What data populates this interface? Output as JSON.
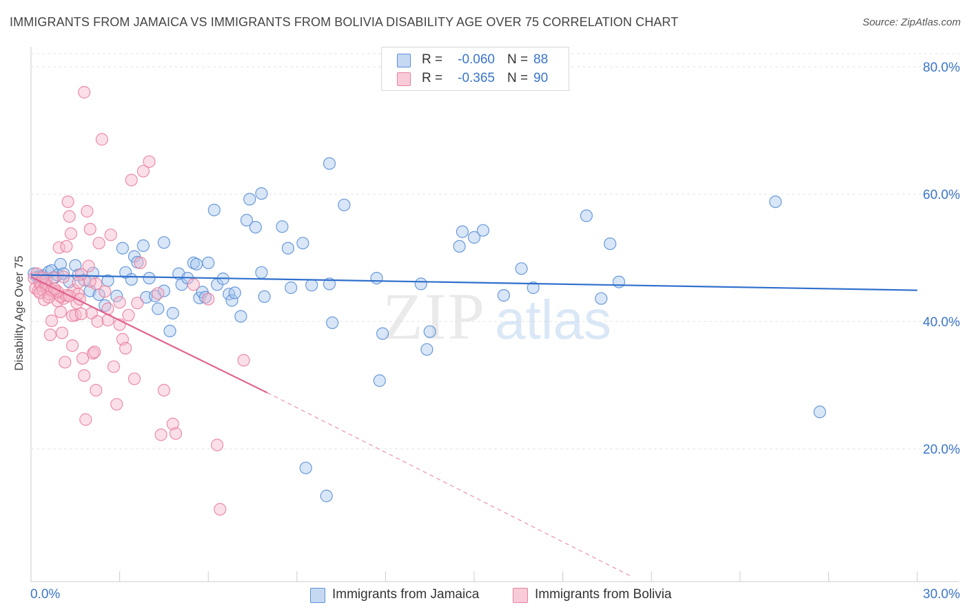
{
  "title": "IMMIGRANTS FROM JAMAICA VS IMMIGRANTS FROM BOLIVIA DISABILITY AGE OVER 75 CORRELATION CHART",
  "source": "Source: ZipAtlas.com",
  "watermark": {
    "zip": "ZIP",
    "atlas": "atlas"
  },
  "legend": {
    "r_label": "R =",
    "n_label": "N =",
    "series": [
      {
        "r": "-0.060",
        "n": "88"
      },
      {
        "r": "-0.365",
        "n": "90"
      }
    ]
  },
  "colors": {
    "jamaica_fill": "#a9c7ee",
    "jamaica_stroke": "#5b8fd6",
    "jamaica_line": "#2f6fcc",
    "bolivia_fill": "#f6b7cb",
    "bolivia_stroke": "#e8819f",
    "bolivia_line": "#e0638e",
    "axis_text": "#3a74c9"
  },
  "chart_data": {
    "type": "scatter",
    "title": "IMMIGRANTS FROM JAMAICA VS IMMIGRANTS FROM BOLIVIA DISABILITY AGE OVER 75 CORRELATION CHART",
    "xlabel": "",
    "ylabel": "Disability Age Over 75",
    "xlim": [
      0,
      30
    ],
    "ylim": [
      0,
      80
    ],
    "x_tick_labels": [
      "0.0%",
      "30.0%"
    ],
    "y_ticks": [
      20,
      40,
      60,
      80
    ],
    "y_tick_labels": [
      "20.0%",
      "40.0%",
      "60.0%",
      "80.0%"
    ],
    "grid": true,
    "legend_position": "top-center",
    "series": [
      {
        "name": "Immigrants from Jamaica",
        "r": -0.06,
        "n": 88,
        "trend": {
          "x": [
            0,
            30
          ],
          "y": [
            47.3,
            44.9
          ],
          "style": "solid"
        },
        "points": [
          [
            0.1,
            47.5
          ],
          [
            0.2,
            47.0
          ],
          [
            0.3,
            46.8
          ],
          [
            0.4,
            47.2
          ],
          [
            0.5,
            46.5
          ],
          [
            0.6,
            47.8
          ],
          [
            0.7,
            48.0
          ],
          [
            0.8,
            46.9
          ],
          [
            0.9,
            47.3
          ],
          [
            1.0,
            49.0
          ],
          [
            1.1,
            47.5
          ],
          [
            1.3,
            46.2
          ],
          [
            1.5,
            48.8
          ],
          [
            1.6,
            47.3
          ],
          [
            1.8,
            46.5
          ],
          [
            2.0,
            44.8
          ],
          [
            2.1,
            47.6
          ],
          [
            2.3,
            44.2
          ],
          [
            2.5,
            42.5
          ],
          [
            2.6,
            46.4
          ],
          [
            2.9,
            44.0
          ],
          [
            3.1,
            51.5
          ],
          [
            3.2,
            47.7
          ],
          [
            3.4,
            46.6
          ],
          [
            3.5,
            50.2
          ],
          [
            3.6,
            49.3
          ],
          [
            3.8,
            51.9
          ],
          [
            3.9,
            43.8
          ],
          [
            4.0,
            46.8
          ],
          [
            4.2,
            44.0
          ],
          [
            4.3,
            42.0
          ],
          [
            4.5,
            44.8
          ],
          [
            4.5,
            52.4
          ],
          [
            4.7,
            38.5
          ],
          [
            4.8,
            41.3
          ],
          [
            5.0,
            47.5
          ],
          [
            5.1,
            45.8
          ],
          [
            5.3,
            46.8
          ],
          [
            5.5,
            49.2
          ],
          [
            5.6,
            49.0
          ],
          [
            5.7,
            43.7
          ],
          [
            5.8,
            44.6
          ],
          [
            5.9,
            43.8
          ],
          [
            6.0,
            49.2
          ],
          [
            6.2,
            57.5
          ],
          [
            6.3,
            45.8
          ],
          [
            6.5,
            46.7
          ],
          [
            6.7,
            44.3
          ],
          [
            6.8,
            43.3
          ],
          [
            6.9,
            44.5
          ],
          [
            7.1,
            40.8
          ],
          [
            7.3,
            55.9
          ],
          [
            7.4,
            59.2
          ],
          [
            7.6,
            54.8
          ],
          [
            7.8,
            47.7
          ],
          [
            7.8,
            60.1
          ],
          [
            7.9,
            43.9
          ],
          [
            8.5,
            54.9
          ],
          [
            8.7,
            51.5
          ],
          [
            8.8,
            45.3
          ],
          [
            9.2,
            52.3
          ],
          [
            9.5,
            45.7
          ],
          [
            9.3,
            17.0
          ],
          [
            10.1,
            64.8
          ],
          [
            10.0,
            12.6
          ],
          [
            10.1,
            45.9
          ],
          [
            10.2,
            39.8
          ],
          [
            10.6,
            58.3
          ],
          [
            11.7,
            46.8
          ],
          [
            11.9,
            38.1
          ],
          [
            11.8,
            30.7
          ],
          [
            13.2,
            45.9
          ],
          [
            13.4,
            35.6
          ],
          [
            13.5,
            38.4
          ],
          [
            14.5,
            51.8
          ],
          [
            14.6,
            54.1
          ],
          [
            15.0,
            53.2
          ],
          [
            15.3,
            54.3
          ],
          [
            16.0,
            44.1
          ],
          [
            16.6,
            48.3
          ],
          [
            17.0,
            45.3
          ],
          [
            18.8,
            56.6
          ],
          [
            19.3,
            43.6
          ],
          [
            19.6,
            52.2
          ],
          [
            19.9,
            46.2
          ],
          [
            25.2,
            58.8
          ],
          [
            26.7,
            25.8
          ],
          [
            0.3,
            47.0
          ]
        ]
      },
      {
        "name": "Immigrants from Bolivia",
        "r": -0.365,
        "n": 90,
        "trend": {
          "x": [
            0,
            8.0
          ],
          "y": [
            47.0,
            28.8
          ],
          "style": "solid",
          "dashed_extension": {
            "x": [
              8.0,
              20.3
            ],
            "y": [
              28.8,
              0
            ]
          }
        },
        "points": [
          [
            0.1,
            46.8
          ],
          [
            0.15,
            45.2
          ],
          [
            0.2,
            47.5
          ],
          [
            0.25,
            44.8
          ],
          [
            0.3,
            46.0
          ],
          [
            0.35,
            45.6
          ],
          [
            0.4,
            44.9
          ],
          [
            0.45,
            43.4
          ],
          [
            0.5,
            46.4
          ],
          [
            0.55,
            45.1
          ],
          [
            0.6,
            44.3
          ],
          [
            0.65,
            37.9
          ],
          [
            0.7,
            40.1
          ],
          [
            0.75,
            46.9
          ],
          [
            0.8,
            44.8
          ],
          [
            0.85,
            44.4
          ],
          [
            0.9,
            43.2
          ],
          [
            0.95,
            51.6
          ],
          [
            1.0,
            41.5
          ],
          [
            1.05,
            38.2
          ],
          [
            1.1,
            43.6
          ],
          [
            1.15,
            33.6
          ],
          [
            1.2,
            51.8
          ],
          [
            1.25,
            58.8
          ],
          [
            1.3,
            56.5
          ],
          [
            1.35,
            53.8
          ],
          [
            1.4,
            36.2
          ],
          [
            1.45,
            44.9
          ],
          [
            1.5,
            41.0
          ],
          [
            1.55,
            42.9
          ],
          [
            1.6,
            44.3
          ],
          [
            1.65,
            43.5
          ],
          [
            1.7,
            47.4
          ],
          [
            1.75,
            34.2
          ],
          [
            1.8,
            31.5
          ],
          [
            1.85,
            24.6
          ],
          [
            1.9,
            57.3
          ],
          [
            1.95,
            48.7
          ],
          [
            2.0,
            54.5
          ],
          [
            2.05,
            41.3
          ],
          [
            2.1,
            35.0
          ],
          [
            2.15,
            35.2
          ],
          [
            2.2,
            29.2
          ],
          [
            2.25,
            40.0
          ],
          [
            2.3,
            52.3
          ],
          [
            2.4,
            68.6
          ],
          [
            2.5,
            44.7
          ],
          [
            2.6,
            42.0
          ],
          [
            2.7,
            53.6
          ],
          [
            2.8,
            32.9
          ],
          [
            2.9,
            27.0
          ],
          [
            3.0,
            39.5
          ],
          [
            3.1,
            37.2
          ],
          [
            3.2,
            35.8
          ],
          [
            3.3,
            41.0
          ],
          [
            3.4,
            62.2
          ],
          [
            3.5,
            31.0
          ],
          [
            3.6,
            42.9
          ],
          [
            3.7,
            49.2
          ],
          [
            3.8,
            63.6
          ],
          [
            4.0,
            65.1
          ],
          [
            4.3,
            44.4
          ],
          [
            4.4,
            22.2
          ],
          [
            4.5,
            29.2
          ],
          [
            4.8,
            23.9
          ],
          [
            4.9,
            22.4
          ],
          [
            5.5,
            45.8
          ],
          [
            6.0,
            43.5
          ],
          [
            6.3,
            20.6
          ],
          [
            6.4,
            10.5
          ],
          [
            7.2,
            33.9
          ],
          [
            1.8,
            76.0
          ],
          [
            0.5,
            45.8
          ],
          [
            0.7,
            44.9
          ],
          [
            1.0,
            43.9
          ],
          [
            1.2,
            44.1
          ],
          [
            1.4,
            40.9
          ],
          [
            0.3,
            44.5
          ],
          [
            0.6,
            43.8
          ],
          [
            0.9,
            44.7
          ],
          [
            1.1,
            47.0
          ],
          [
            1.6,
            46.1
          ],
          [
            2.2,
            45.9
          ],
          [
            2.6,
            40.2
          ],
          [
            3.0,
            43.0
          ],
          [
            0.4,
            46.9
          ],
          [
            0.8,
            45.1
          ],
          [
            1.3,
            44.0
          ],
          [
            1.7,
            41.2
          ],
          [
            2.0,
            46.3
          ]
        ]
      }
    ]
  }
}
